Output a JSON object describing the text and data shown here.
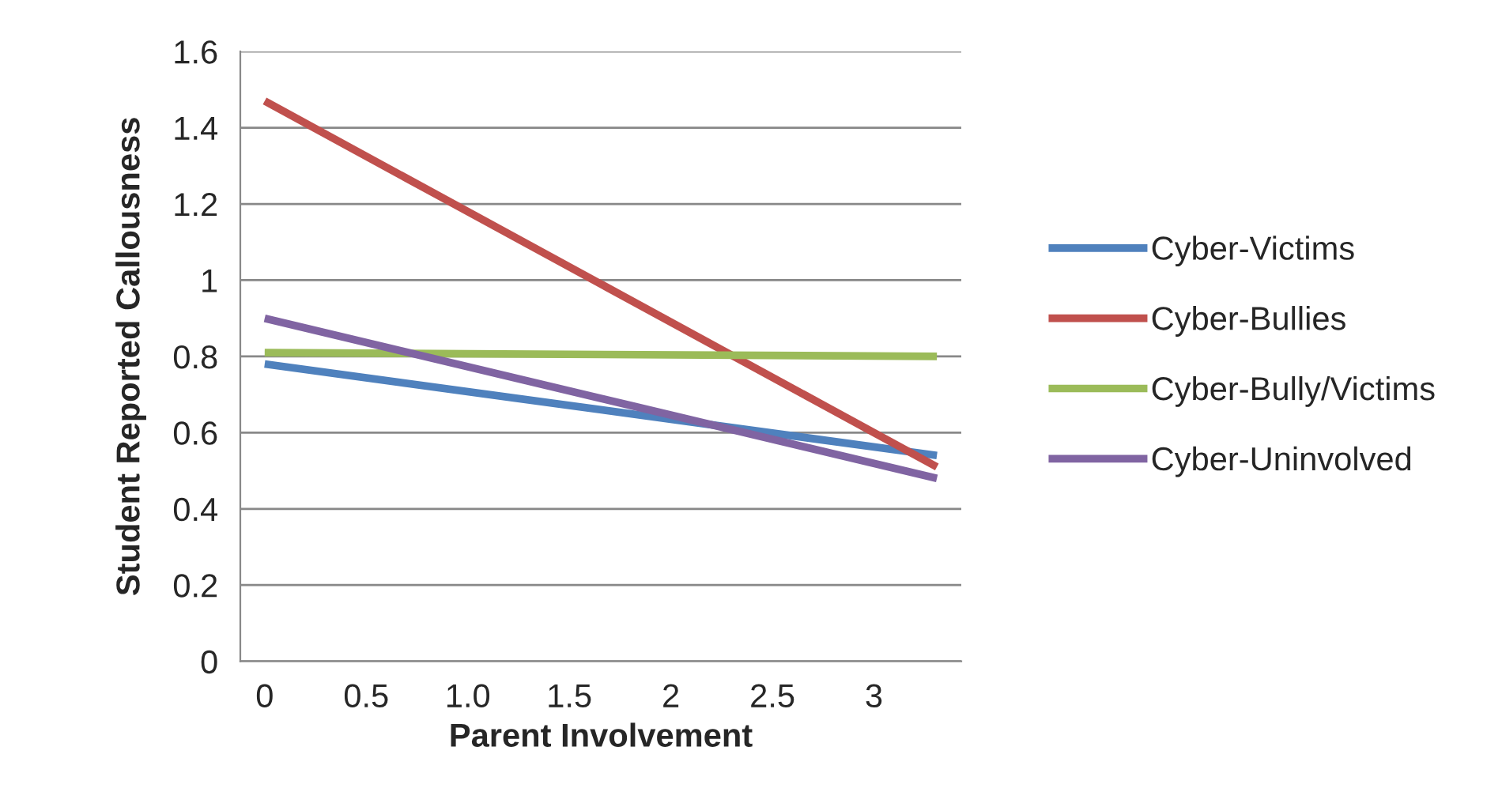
{
  "chart_data": {
    "type": "line",
    "xlabel": "Parent Involvement",
    "ylabel": "Student Reported Callousness",
    "xlim": [
      -0.12,
      3.43
    ],
    "xticks": [
      0,
      0.5,
      {
        "value": 1,
        "label": "1.0"
      },
      1.5,
      2,
      2.5,
      3
    ],
    "ylim": [
      0,
      1.6
    ],
    "yticks": [
      0,
      0.2,
      0.4,
      0.6,
      0.8,
      1,
      1.2,
      1.4,
      1.6
    ],
    "grid": "y",
    "legend": "right",
    "marker": "none",
    "line_style": "solid",
    "x": [
      0,
      3.31
    ],
    "series": [
      {
        "name": "Cyber-Victims",
        "color": "#4f81bd",
        "values": [
          0.78,
          0.54
        ]
      },
      {
        "name": "Cyber-Bullies",
        "color": "#c0504d",
        "values": [
          1.47,
          0.51
        ]
      },
      {
        "name": "Cyber-Bully/Victims",
        "color": "#9bbb59",
        "values": [
          0.81,
          0.8
        ]
      },
      {
        "name": "Cyber-Uninvolved",
        "color": "#8064a2",
        "values": [
          0.9,
          0.48
        ]
      }
    ]
  }
}
